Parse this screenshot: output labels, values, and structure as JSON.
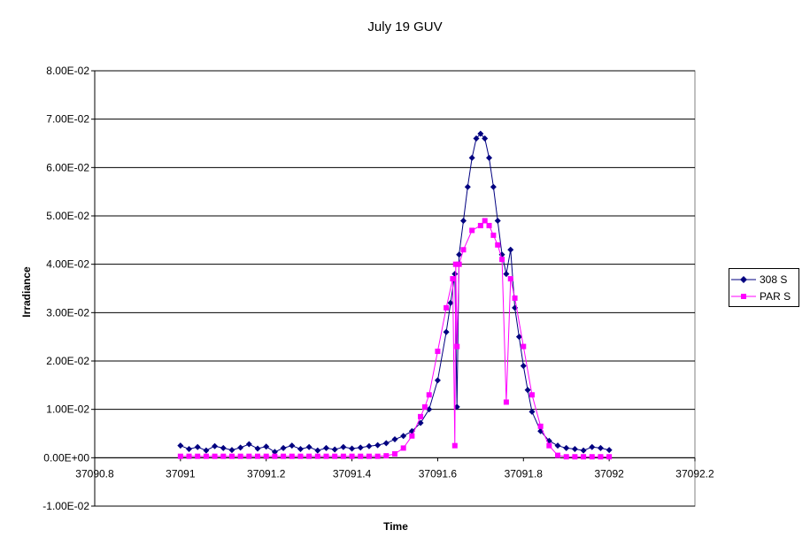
{
  "chart_data": {
    "type": "scatter",
    "title": "July 19 GUV",
    "xlabel": "Time",
    "ylabel": "Irradiance",
    "xlim": [
      37090.8,
      37092.2
    ],
    "ylim": [
      -0.01,
      0.08
    ],
    "x_ticks": [
      37090.8,
      37091,
      37091.2,
      37091.4,
      37091.6,
      37091.8,
      37092,
      37092.2
    ],
    "x_tick_labels": [
      "37090.8",
      "37091",
      "37091.2",
      "37091.4",
      "37091.6",
      "37091.8",
      "37092",
      "37092.2"
    ],
    "y_ticks": [
      -0.01,
      0,
      0.01,
      0.02,
      0.03,
      0.04,
      0.05,
      0.06,
      0.07,
      0.08
    ],
    "y_tick_labels": [
      "-1.00E-02",
      "0.00E+00",
      "1.00E-02",
      "2.00E-02",
      "3.00E-02",
      "4.00E-02",
      "5.00E-02",
      "6.00E-02",
      "7.00E-02",
      "8.00E-02"
    ],
    "grid": "horizontal",
    "legend_position": "right",
    "series": [
      {
        "name": "308 S",
        "color": "#000080",
        "marker": "diamond",
        "x": [
          37091.0,
          37091.02,
          37091.04,
          37091.06,
          37091.08,
          37091.1,
          37091.12,
          37091.14,
          37091.16,
          37091.18,
          37091.2,
          37091.22,
          37091.24,
          37091.26,
          37091.28,
          37091.3,
          37091.32,
          37091.34,
          37091.36,
          37091.38,
          37091.4,
          37091.42,
          37091.44,
          37091.46,
          37091.48,
          37091.5,
          37091.52,
          37091.54,
          37091.56,
          37091.58,
          37091.6,
          37091.62,
          37091.63,
          37091.64,
          37091.645,
          37091.65,
          37091.66,
          37091.67,
          37091.68,
          37091.69,
          37091.7,
          37091.71,
          37091.72,
          37091.73,
          37091.74,
          37091.75,
          37091.76,
          37091.77,
          37091.78,
          37091.79,
          37091.8,
          37091.81,
          37091.82,
          37091.84,
          37091.86,
          37091.88,
          37091.9,
          37091.92,
          37091.94,
          37091.96,
          37091.98,
          37092.0
        ],
        "y": [
          0.0025,
          0.0018,
          0.0022,
          0.0015,
          0.0024,
          0.002,
          0.0016,
          0.0021,
          0.0028,
          0.0019,
          0.0023,
          0.0012,
          0.002,
          0.0025,
          0.0018,
          0.0022,
          0.0015,
          0.002,
          0.0017,
          0.0022,
          0.0019,
          0.0021,
          0.0024,
          0.0026,
          0.003,
          0.0038,
          0.0045,
          0.0055,
          0.0072,
          0.01,
          0.016,
          0.026,
          0.032,
          0.038,
          0.0105,
          0.042,
          0.049,
          0.056,
          0.062,
          0.066,
          0.067,
          0.066,
          0.062,
          0.056,
          0.049,
          0.042,
          0.038,
          0.043,
          0.031,
          0.025,
          0.019,
          0.014,
          0.0095,
          0.0055,
          0.0035,
          0.0025,
          0.002,
          0.0018,
          0.0015,
          0.0022,
          0.002,
          0.0016
        ]
      },
      {
        "name": "PAR S",
        "color": "#ff00ff",
        "marker": "square",
        "x": [
          37091.0,
          37091.02,
          37091.04,
          37091.06,
          37091.08,
          37091.1,
          37091.12,
          37091.14,
          37091.16,
          37091.18,
          37091.2,
          37091.22,
          37091.24,
          37091.26,
          37091.28,
          37091.3,
          37091.32,
          37091.34,
          37091.36,
          37091.38,
          37091.4,
          37091.42,
          37091.44,
          37091.46,
          37091.48,
          37091.5,
          37091.52,
          37091.54,
          37091.56,
          37091.57,
          37091.58,
          37091.6,
          37091.62,
          37091.635,
          37091.64,
          37091.642,
          37091.645,
          37091.65,
          37091.66,
          37091.68,
          37091.7,
          37091.71,
          37091.72,
          37091.73,
          37091.74,
          37091.75,
          37091.76,
          37091.77,
          37091.78,
          37091.8,
          37091.82,
          37091.84,
          37091.86,
          37091.88,
          37091.9,
          37091.92,
          37091.94,
          37091.96,
          37091.98,
          37092.0
        ],
        "y": [
          0.0003,
          0.0003,
          0.0003,
          0.0003,
          0.0003,
          0.0003,
          0.0003,
          0.0003,
          0.0003,
          0.0003,
          0.0003,
          0.0003,
          0.0003,
          0.0003,
          0.0003,
          0.0003,
          0.0003,
          0.0003,
          0.0003,
          0.0003,
          0.0003,
          0.0003,
          0.0003,
          0.0003,
          0.0004,
          0.0008,
          0.002,
          0.0045,
          0.0085,
          0.0105,
          0.013,
          0.022,
          0.031,
          0.037,
          0.0025,
          0.04,
          0.023,
          0.04,
          0.043,
          0.047,
          0.048,
          0.049,
          0.048,
          0.046,
          0.044,
          0.041,
          0.0115,
          0.037,
          0.033,
          0.023,
          0.013,
          0.0065,
          0.0025,
          0.0005,
          0.0002,
          0.0002,
          0.0002,
          0.0002,
          0.0002,
          0.0002
        ]
      }
    ]
  }
}
